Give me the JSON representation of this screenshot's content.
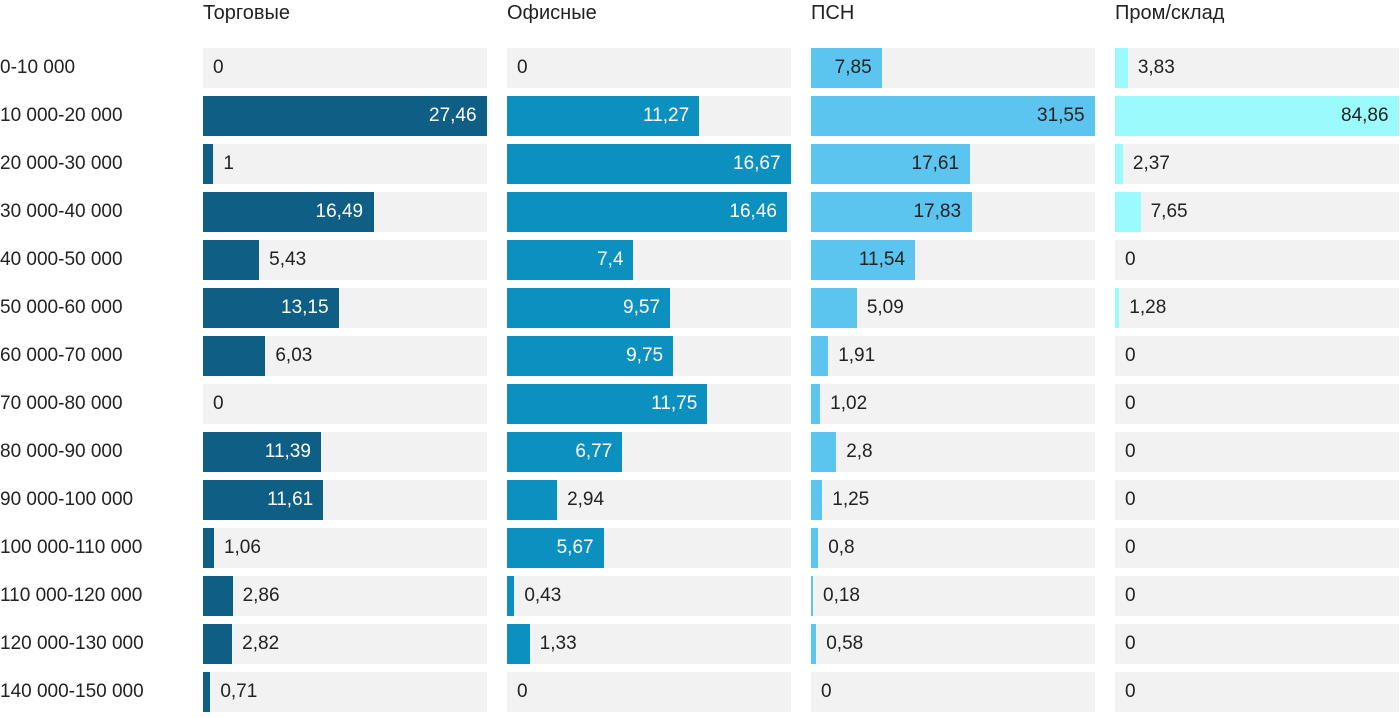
{
  "chart_data": {
    "type": "bar",
    "orientation": "horizontal",
    "title": "",
    "normalization": "per-column-max",
    "value_format": "comma-decimal",
    "track_color": "#f2f2f2",
    "text_color": "#222222",
    "categories": [
      "0-10 000",
      "10 000-20 000",
      "20 000-30 000",
      "30 000-40 000",
      "40 000-50 000",
      "50 000-60 000",
      "60 000-70 000",
      "70 000-80 000",
      "80 000-90 000",
      "90 000-100 000",
      "100 000-110 000",
      "110 000-120 000",
      "120 000-130 000",
      "140 000-150 000"
    ],
    "series": [
      {
        "name": "Торговые",
        "color": "#0e5e85",
        "inside_label_color": "#ffffff",
        "outside_label_color": "#222222",
        "values": [
          0,
          27.46,
          1,
          16.49,
          5.43,
          13.15,
          6.03,
          0,
          11.39,
          11.61,
          1.06,
          2.86,
          2.82,
          0.71
        ]
      },
      {
        "name": "Офисные",
        "color": "#0c90c0",
        "inside_label_color": "#ffffff",
        "outside_label_color": "#222222",
        "values": [
          0,
          11.27,
          16.67,
          16.46,
          7.4,
          9.57,
          9.75,
          11.75,
          6.77,
          2.94,
          5.67,
          0.43,
          1.33,
          0
        ]
      },
      {
        "name": "ПСН",
        "color": "#5bc5f0",
        "inside_label_color": "#222222",
        "outside_label_color": "#222222",
        "values": [
          7.85,
          31.55,
          17.61,
          17.83,
          11.54,
          5.09,
          1.91,
          1.02,
          2.8,
          1.25,
          0.8,
          0.18,
          0.58,
          0
        ]
      },
      {
        "name": "Пром/склад",
        "color": "#9bfbfc",
        "inside_label_color": "#222222",
        "outside_label_color": "#222222",
        "values": [
          3.83,
          84.86,
          2.37,
          7.65,
          0,
          1.28,
          0,
          0,
          0,
          0,
          0,
          0,
          0,
          0
        ]
      }
    ]
  }
}
